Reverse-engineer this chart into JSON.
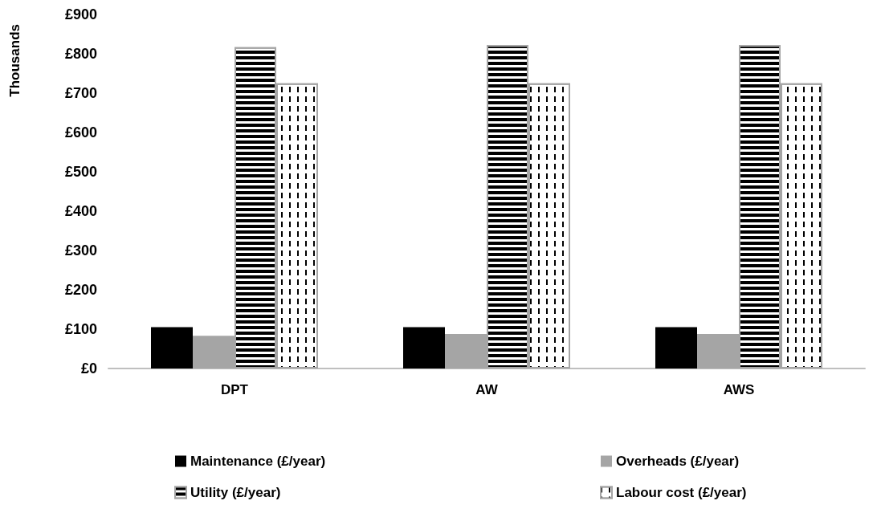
{
  "chart_data": {
    "type": "bar",
    "ylabel": "Thousands",
    "categories": [
      "DPT",
      "AW",
      "AWS"
    ],
    "series": [
      {
        "name": "Maintenance (£/year)",
        "color": "#000000",
        "values": [
          105,
          105,
          105
        ]
      },
      {
        "name": "Overheads (£/year)",
        "color": "#a5a5a5",
        "values": [
          83,
          88,
          88
        ]
      },
      {
        "name": "Utility (£/year)",
        "color": "#ffffff",
        "values": [
          817,
          822,
          822
        ]
      },
      {
        "name": "Labour cost (£/year)",
        "color": "#ffffff",
        "values": [
          725,
          725,
          725
        ]
      }
    ],
    "ylim": [
      0,
      900
    ],
    "yticks": [
      {
        "value": 0,
        "label": "£0"
      },
      {
        "value": 100,
        "label": "£100"
      },
      {
        "value": 200,
        "label": "£200"
      },
      {
        "value": 300,
        "label": "£300"
      },
      {
        "value": 400,
        "label": "£400"
      },
      {
        "value": 500,
        "label": "£500"
      },
      {
        "value": 600,
        "label": "£600"
      },
      {
        "value": 700,
        "label": "£700"
      },
      {
        "value": 800,
        "label": "£800"
      },
      {
        "value": 900,
        "label": "£900"
      }
    ],
    "grid": false,
    "legend": "bottom"
  }
}
